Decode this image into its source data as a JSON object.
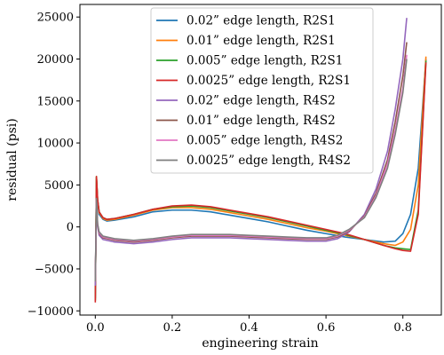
{
  "chart_data": {
    "type": "line",
    "xlabel": "engineering strain",
    "ylabel": "residual (psi)",
    "xlim": [
      -0.04,
      0.9
    ],
    "ylim": [
      -10500,
      26500
    ],
    "xticks": [
      0.0,
      0.2,
      0.4,
      0.6,
      0.8
    ],
    "xtick_labels": [
      "0.0",
      "0.2",
      "0.4",
      "0.6",
      "0.8"
    ],
    "yticks": [
      -10000,
      -5000,
      0,
      5000,
      10000,
      15000,
      20000,
      25000
    ],
    "ytick_labels": [
      "−10000",
      "−5000",
      "0",
      "5000",
      "10000",
      "15000",
      "20000",
      "25000"
    ],
    "grid": false,
    "legend_position": "top-center",
    "series": [
      {
        "name": "0.02” edge length, R2S1",
        "color": "#1f77b4",
        "x": [
          0.0,
          0.003,
          0.006,
          0.01,
          0.02,
          0.03,
          0.05,
          0.1,
          0.15,
          0.2,
          0.25,
          0.3,
          0.35,
          0.4,
          0.45,
          0.5,
          0.55,
          0.6,
          0.65,
          0.7,
          0.75,
          0.78,
          0.8,
          0.82,
          0.84,
          0.86
        ],
        "y": [
          -8500,
          5800,
          3000,
          1500,
          900,
          700,
          800,
          1200,
          1800,
          2000,
          2000,
          1800,
          1400,
          1000,
          600,
          100,
          -400,
          -800,
          -1200,
          -1500,
          -1800,
          -1700,
          -800,
          1500,
          7000,
          20000
        ]
      },
      {
        "name": "0.01” edge length, R2S1",
        "color": "#ff7f0e",
        "x": [
          0.0,
          0.003,
          0.006,
          0.01,
          0.02,
          0.03,
          0.05,
          0.1,
          0.15,
          0.2,
          0.25,
          0.3,
          0.35,
          0.4,
          0.45,
          0.5,
          0.55,
          0.6,
          0.65,
          0.7,
          0.75,
          0.78,
          0.8,
          0.82,
          0.84,
          0.86
        ],
        "y": [
          -8700,
          6000,
          3200,
          1700,
          1000,
          800,
          900,
          1400,
          2000,
          2300,
          2300,
          2100,
          1700,
          1300,
          900,
          400,
          -100,
          -500,
          -1000,
          -1500,
          -2000,
          -2200,
          -1800,
          -300,
          5000,
          20300
        ]
      },
      {
        "name": "0.005” edge length, R2S1",
        "color": "#2ca02c",
        "x": [
          0.0,
          0.003,
          0.006,
          0.01,
          0.02,
          0.03,
          0.05,
          0.1,
          0.15,
          0.2,
          0.25,
          0.3,
          0.35,
          0.4,
          0.45,
          0.5,
          0.55,
          0.6,
          0.65,
          0.7,
          0.75,
          0.78,
          0.8,
          0.82,
          0.84,
          0.86
        ],
        "y": [
          -8800,
          6000,
          3300,
          1800,
          1100,
          900,
          1000,
          1500,
          2100,
          2400,
          2500,
          2300,
          1900,
          1500,
          1100,
          600,
          100,
          -400,
          -900,
          -1500,
          -2200,
          -2500,
          -2600,
          -2700,
          2000,
          19800
        ]
      },
      {
        "name": "0.0025” edge length, R2S1",
        "color": "#d62728",
        "x": [
          0.0,
          0.003,
          0.006,
          0.01,
          0.02,
          0.03,
          0.05,
          0.1,
          0.15,
          0.2,
          0.25,
          0.3,
          0.35,
          0.4,
          0.45,
          0.5,
          0.55,
          0.6,
          0.65,
          0.7,
          0.75,
          0.78,
          0.8,
          0.82,
          0.84,
          0.86
        ],
        "y": [
          -9000,
          6000,
          3300,
          1800,
          1100,
          900,
          1000,
          1500,
          2100,
          2500,
          2600,
          2400,
          2000,
          1600,
          1200,
          700,
          200,
          -300,
          -800,
          -1500,
          -2200,
          -2600,
          -2800,
          -2900,
          1500,
          19600
        ]
      },
      {
        "name": "0.02” edge length, R4S2",
        "color": "#9467bd",
        "x": [
          0.0,
          0.003,
          0.006,
          0.01,
          0.02,
          0.05,
          0.1,
          0.15,
          0.2,
          0.25,
          0.3,
          0.35,
          0.4,
          0.45,
          0.5,
          0.55,
          0.6,
          0.63,
          0.66,
          0.7,
          0.73,
          0.76,
          0.78,
          0.8,
          0.81
        ],
        "y": [
          -7000,
          3000,
          0,
          -1000,
          -1500,
          -1800,
          -2000,
          -1800,
          -1500,
          -1300,
          -1300,
          -1300,
          -1400,
          -1500,
          -1600,
          -1700,
          -1700,
          -1400,
          -600,
          1500,
          4500,
          9000,
          14000,
          20000,
          24900
        ]
      },
      {
        "name": "0.01” edge length, R4S2",
        "color": "#8c564b",
        "x": [
          0.0,
          0.003,
          0.006,
          0.01,
          0.02,
          0.05,
          0.1,
          0.15,
          0.2,
          0.25,
          0.3,
          0.35,
          0.4,
          0.45,
          0.5,
          0.55,
          0.6,
          0.63,
          0.66,
          0.7,
          0.73,
          0.76,
          0.78,
          0.8,
          0.81
        ],
        "y": [
          -6500,
          3200,
          200,
          -800,
          -1300,
          -1600,
          -1800,
          -1600,
          -1300,
          -1100,
          -1100,
          -1100,
          -1200,
          -1300,
          -1400,
          -1500,
          -1500,
          -1200,
          -500,
          1300,
          4000,
          8000,
          12500,
          18000,
          22000
        ]
      },
      {
        "name": "0.005” edge length, R4S2",
        "color": "#e377c2",
        "x": [
          0.0,
          0.003,
          0.006,
          0.01,
          0.02,
          0.05,
          0.1,
          0.15,
          0.2,
          0.25,
          0.3,
          0.35,
          0.4,
          0.45,
          0.5,
          0.55,
          0.6,
          0.63,
          0.66,
          0.7,
          0.73,
          0.76,
          0.78,
          0.8,
          0.81
        ],
        "y": [
          -6500,
          3300,
          300,
          -700,
          -1200,
          -1500,
          -1700,
          -1500,
          -1200,
          -1000,
          -1000,
          -1000,
          -1100,
          -1200,
          -1300,
          -1400,
          -1400,
          -1100,
          -400,
          1200,
          3700,
          7500,
          11500,
          16500,
          20500
        ]
      },
      {
        "name": "0.0025” edge length, R4S2",
        "color": "#7f7f7f",
        "x": [
          0.0,
          0.003,
          0.006,
          0.01,
          0.02,
          0.05,
          0.1,
          0.15,
          0.2,
          0.25,
          0.3,
          0.35,
          0.4,
          0.45,
          0.5,
          0.55,
          0.6,
          0.63,
          0.66,
          0.7,
          0.73,
          0.76,
          0.78,
          0.8,
          0.81
        ],
        "y": [
          -6500,
          3400,
          400,
          -600,
          -1100,
          -1400,
          -1600,
          -1400,
          -1100,
          -900,
          -900,
          -900,
          -1000,
          -1100,
          -1200,
          -1300,
          -1300,
          -1000,
          -300,
          1100,
          3500,
          7000,
          11000,
          16000,
          20000
        ]
      }
    ]
  }
}
